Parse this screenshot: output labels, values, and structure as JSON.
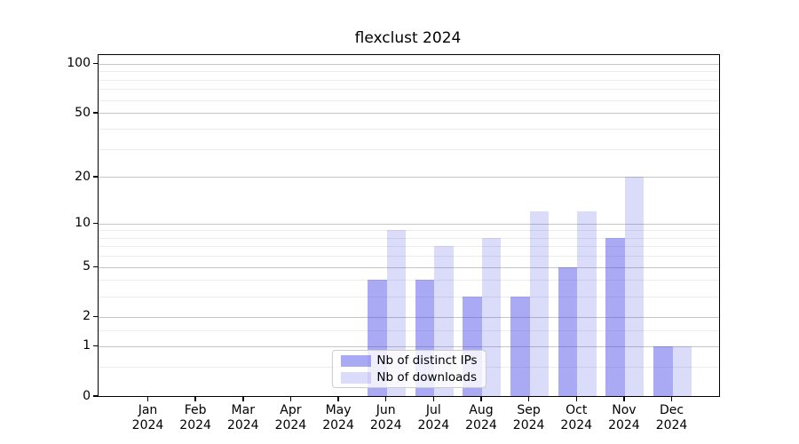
{
  "chart_data": {
    "type": "bar",
    "title": "flexclust 2024",
    "categories": [
      "Jan 2024",
      "Feb 2024",
      "Mar 2024",
      "Apr 2024",
      "May 2024",
      "Jun 2024",
      "Jul 2024",
      "Aug 2024",
      "Sep 2024",
      "Oct 2024",
      "Nov 2024",
      "Dec 2024"
    ],
    "series": [
      {
        "name": "Nb of distinct IPs",
        "color": "rgba(62,62,230,0.44)",
        "values": [
          0,
          0,
          0,
          0,
          0,
          4,
          4,
          3,
          3,
          5,
          8,
          1
        ]
      },
      {
        "name": "Nb of downloads",
        "color": "rgba(62,62,230,0.19)",
        "values": [
          0,
          0,
          0,
          0,
          0,
          9,
          7,
          8,
          12,
          12,
          20,
          1
        ]
      }
    ],
    "xlabel": "",
    "ylabel": "",
    "yscale": "log1p",
    "yticks": [
      0,
      1,
      2,
      5,
      10,
      20,
      50,
      100
    ],
    "minor_yticks": [
      0.5,
      1.5,
      3,
      4,
      6,
      7,
      8,
      9,
      30,
      40,
      60,
      70,
      80,
      90
    ],
    "ylim": [
      0,
      113
    ],
    "grid": "horizontal-major-and-minor",
    "legend_position": "lower center",
    "colors": {
      "axis": "#000000",
      "major_grid": "#c6c6c6",
      "minor_grid": "#ececec",
      "background": "#ffffff"
    }
  }
}
